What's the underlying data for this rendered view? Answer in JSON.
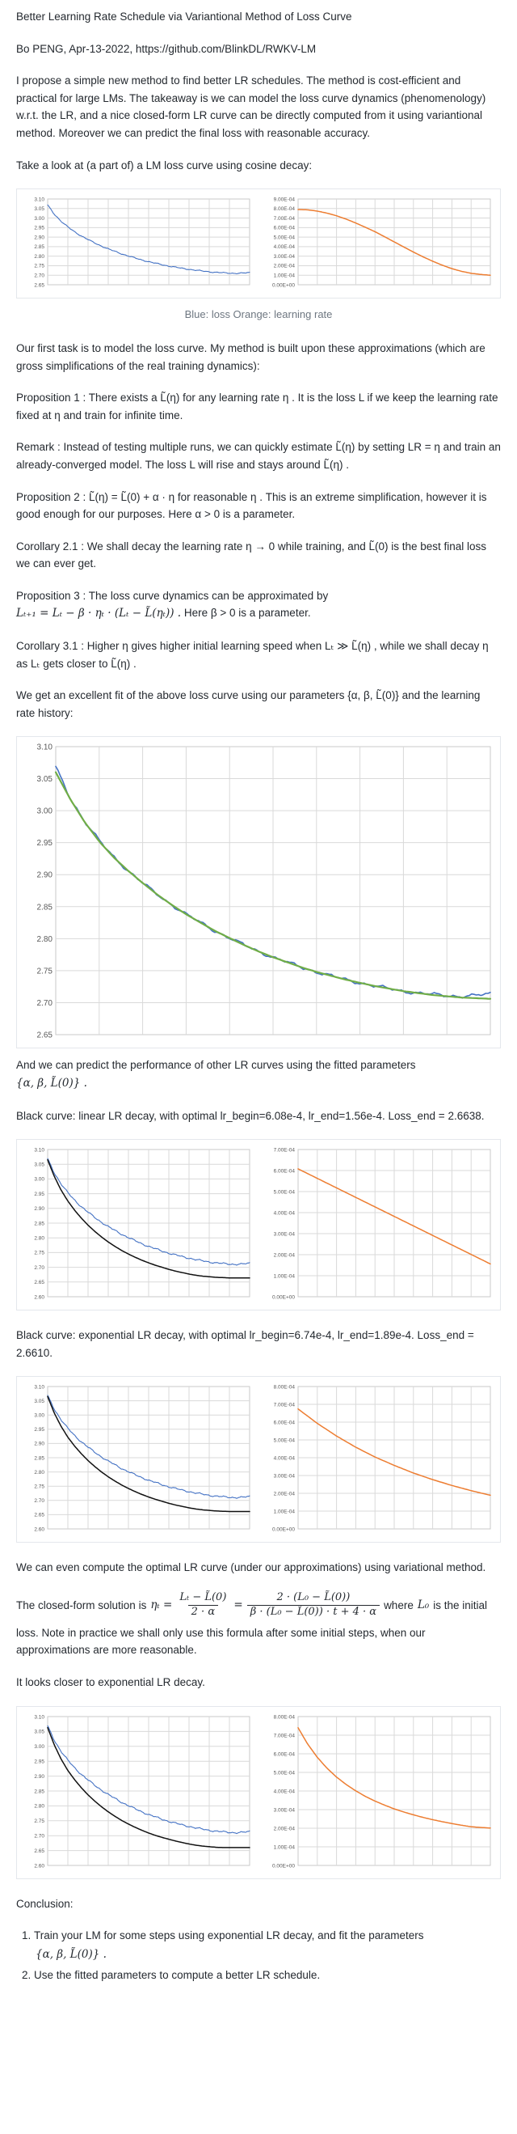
{
  "page": {
    "title": "Better Learning Rate Schedule via Variantional Method of Loss Curve",
    "byline": "Bo PENG, Apr-13-2022, https://github.com/BlinkDL/RWKV-LM",
    "intro": "I propose a simple new method to find better LR schedules. The method is cost-efficient and practical for large LMs. The takeaway is we can model the loss curve dynamics (phenomenology) w.r.t. the LR, and a nice closed-form LR curve can be directly computed from it using variantional method. Moreover we can predict the final loss with reasonable accuracy.",
    "take_a_look": "Take a look at (a part of) a LM loss curve using cosine decay:",
    "fig1_caption": "Blue: loss Orange: learning rate",
    "first_task": "Our first task is to model the loss curve. My method is built upon these approximations (which are gross simplifications of the real training dynamics):",
    "prop1": "Proposition 1 : There exists a  L̃(η)  for any learning rate  η . It is the loss  L  if we keep the learning rate fixed at  η  and train for infinite time.",
    "remark": "Remark : Instead of testing multiple runs, we can quickly estimate  L̃(η)  by setting LR =  η  and train an already-converged model. The loss  L  will rise and stays around  L̃(η) .",
    "prop2": "Proposition 2 :  L̃(η) = L̃(0) + α · η  for reasonable  η . This is an extreme simplification, however it is good enough for our purposes. Here  α > 0  is a parameter.",
    "cor21": "Corollary 2.1 : We shall decay the learning rate  η → 0  while training, and  L̃(0)  is the best final loss we can ever get.",
    "prop3_line1": "Proposition 3 : The loss curve dynamics can be approximated by",
    "prop3_math": "Lₜ₊₁ = Lₜ − β · ηₜ · (Lₜ − L̃(ηₜ)) .",
    "prop3_rest": " Here  β > 0  is a parameter.",
    "cor31": "Corollary 3.1 : Higher  η  gives higher initial learning speed when  Lₜ ≫ L̃(η) , while we shall decay  η  as  Lₜ  gets closer to  L̃(η) .",
    "excellent_fit": "We get an excellent fit of the above loss curve using our parameters  {α, β, L̃(0)}  and the learning rate history:",
    "predict_text": "And we can predict the performance of other LR curves using the fitted parameters",
    "predict_math": "{α, β, L̃(0)} .",
    "black_linear": "Black curve: linear LR decay, with optimal lr_begin=6.08e-4, lr_end=1.56e-4. Loss_end = 2.6638.",
    "black_exp": "Black curve: exponential LR decay, with optimal lr_begin=6.74e-4, lr_end=1.89e-4. Loss_end = 2.6610.",
    "variational": "We can even compute the optimal LR curve (under our approximations) using variational method.",
    "closed_form": {
      "lead": "The closed-form solution is",
      "lhs": "ηₜ =",
      "f1_num": "Lₜ − L̃(0)",
      "f1_den": "2 · α",
      "eq": "=",
      "f2_num": "2 · (L₀ − L̃(0))",
      "f2_den": "β · (L₀ − L̃(0)) · t + 4 · α",
      "tail1": "where",
      "tail2": "L₀",
      "tail3": "is the initial"
    },
    "closed_form_rest": "loss. Note in practice we shall only use this formula after some initial steps, when our approximations are more reasonable.",
    "closer": "It looks closer to exponential LR decay.",
    "conclusion_heading": "Conclusion:",
    "conclusion_items": [
      {
        "text": "Train your LM for some steps using exponential LR decay, and fit the parameters",
        "math": "{α, β, L̃(0)} ."
      },
      {
        "text": "Use the fitted parameters to compute a better LR schedule.",
        "math": ""
      }
    ]
  },
  "chart_data": [
    {
      "id": "fig1-cosine-run",
      "type": "line",
      "panels": [
        {
          "name": "loss-curve",
          "ylabels": [
            "3.10",
            "3.05",
            "3.00",
            "2.95",
            "2.90",
            "2.85",
            "2.80",
            "2.75",
            "2.70",
            "2.65"
          ],
          "ymax": 3.1,
          "ymin": 2.65,
          "labelWidth": 32,
          "labelSize": 6.5,
          "grid": true,
          "series": [
            {
              "name": "loss (blue)",
              "color": "#4472c4",
              "width": 1.1,
              "noise": 0.0035,
              "values": [
                3.068,
                3.02,
                2.983,
                2.953,
                2.928,
                2.906,
                2.887,
                2.869,
                2.853,
                2.838,
                2.825,
                2.812,
                2.801,
                2.79,
                2.78,
                2.771,
                2.763,
                2.755,
                2.748,
                2.742,
                2.736,
                2.731,
                2.726,
                2.722,
                2.718,
                2.715,
                2.713,
                2.711,
                2.71,
                2.711,
                2.714
              ]
            }
          ]
        },
        {
          "name": "learning-rate-curve",
          "ylabels": [
            "9.00E-04",
            "8.00E-04",
            "7.00E-04",
            "6.00E-04",
            "5.00E-04",
            "4.00E-04",
            "3.00E-04",
            "2.00E-04",
            "1.00E-04",
            "0.00E+00"
          ],
          "ymax": 0.0009,
          "ymin": 0,
          "labelWidth": 44,
          "labelSize": 6.5,
          "grid": true,
          "series": [
            {
              "name": "learning rate (orange, cosine decay)",
              "color": "#ed7d31",
              "width": 1.5,
              "noise": 0,
              "values": [
                0.00079,
                0.000786,
                0.000773,
                0.000752,
                0.000724,
                0.000689,
                0.000648,
                0.000603,
                0.000557,
                0.000504,
                0.00045,
                0.000396,
                0.000343,
                0.000293,
                0.000247,
                0.000205,
                0.000169,
                0.000141,
                0.00012,
                0.000108,
                0.0001
              ]
            }
          ]
        }
      ]
    },
    {
      "id": "fig2-fit",
      "type": "line",
      "panels": [
        {
          "name": "loss-fit-chart",
          "ylabels": [
            "3.10",
            "3.05",
            "3.00",
            "2.95",
            "2.90",
            "2.85",
            "2.80",
            "2.75",
            "2.70",
            "2.65"
          ],
          "ymax": 3.1,
          "ymin": 2.65,
          "labelWidth": 42,
          "labelSize": 10,
          "grid": true,
          "series": [
            {
              "name": "actual loss (blue)",
              "color": "#4472c4",
              "width": 1.6,
              "noise": 0.0035,
              "values": [
                3.068,
                3.02,
                2.983,
                2.953,
                2.928,
                2.906,
                2.887,
                2.869,
                2.853,
                2.838,
                2.825,
                2.812,
                2.801,
                2.79,
                2.78,
                2.771,
                2.763,
                2.755,
                2.748,
                2.742,
                2.736,
                2.731,
                2.726,
                2.722,
                2.718,
                2.715,
                2.713,
                2.711,
                2.71,
                2.711,
                2.714
              ],
              "comment": ""
            },
            {
              "name": "fitted loss (green)",
              "color": "#70ad47",
              "width": 2.2,
              "noise": 0,
              "values": [
                3.06,
                3.018,
                2.982,
                2.952,
                2.927,
                2.906,
                2.887,
                2.869,
                2.853,
                2.838,
                2.825,
                2.812,
                2.801,
                2.79,
                2.78,
                2.771,
                2.763,
                2.755,
                2.748,
                2.742,
                2.736,
                2.731,
                2.726,
                2.722,
                2.718,
                2.715,
                2.712,
                2.71,
                2.708,
                2.707,
                2.706
              ]
            }
          ]
        }
      ]
    },
    {
      "id": "fig3-linear-decay",
      "type": "line",
      "panels": [
        {
          "name": "loss-comparison-linear",
          "ylabels": [
            "3.10",
            "3.05",
            "3.00",
            "2.95",
            "2.90",
            "2.85",
            "2.80",
            "2.75",
            "2.70",
            "2.65",
            "2.60"
          ],
          "ymax": 3.1,
          "ymin": 2.6,
          "labelWidth": 32,
          "labelSize": 6.5,
          "grid": true,
          "series": [
            {
              "name": "actual loss (blue)",
              "color": "#4472c4",
              "width": 1.1,
              "noise": 0.0035,
              "values": [
                3.068,
                3.02,
                2.983,
                2.953,
                2.928,
                2.906,
                2.887,
                2.869,
                2.853,
                2.838,
                2.825,
                2.812,
                2.801,
                2.79,
                2.78,
                2.771,
                2.763,
                2.755,
                2.748,
                2.742,
                2.736,
                2.731,
                2.726,
                2.722,
                2.718,
                2.715,
                2.713,
                2.711,
                2.71,
                2.711,
                2.714
              ]
            },
            {
              "name": "predicted loss linear LR (black)",
              "color": "#111111",
              "width": 1.5,
              "noise": 0,
              "values": [
                3.065,
                3.008,
                2.962,
                2.925,
                2.894,
                2.867,
                2.843,
                2.822,
                2.803,
                2.786,
                2.771,
                2.757,
                2.745,
                2.734,
                2.724,
                2.715,
                2.707,
                2.7,
                2.693,
                2.687,
                2.682,
                2.677,
                2.673,
                2.67,
                2.668,
                2.666,
                2.665,
                2.664,
                2.664,
                2.664,
                2.664
              ]
            }
          ]
        },
        {
          "name": "lr-linear",
          "ylabels": [
            "7.00E-04",
            "6.00E-04",
            "5.00E-04",
            "4.00E-04",
            "3.00E-04",
            "2.00E-04",
            "1.00E-04",
            "0.00E+00"
          ],
          "ymax": 0.0007,
          "ymin": 0,
          "labelWidth": 44,
          "labelSize": 6.5,
          "grid": true,
          "series": [
            {
              "name": "linear LR decay 6.08e-4 to 1.56e-4 (orange)",
              "color": "#ed7d31",
              "width": 1.5,
              "noise": 0,
              "values": [
                0.000608,
                0.000156
              ]
            }
          ]
        }
      ]
    },
    {
      "id": "fig4-exponential-decay",
      "type": "line",
      "panels": [
        {
          "name": "loss-comparison-exp",
          "ylabels": [
            "3.10",
            "3.05",
            "3.00",
            "2.95",
            "2.90",
            "2.85",
            "2.80",
            "2.75",
            "2.70",
            "2.65",
            "2.60"
          ],
          "ymax": 3.1,
          "ymin": 2.6,
          "labelWidth": 32,
          "labelSize": 6.5,
          "grid": true,
          "series": [
            {
              "name": "actual loss (blue)",
              "color": "#4472c4",
              "width": 1.1,
              "noise": 0.0035,
              "values": [
                3.068,
                3.02,
                2.983,
                2.953,
                2.928,
                2.906,
                2.887,
                2.869,
                2.853,
                2.838,
                2.825,
                2.812,
                2.801,
                2.79,
                2.78,
                2.771,
                2.763,
                2.755,
                2.748,
                2.742,
                2.736,
                2.731,
                2.726,
                2.722,
                2.718,
                2.715,
                2.713,
                2.711,
                2.71,
                2.711,
                2.714
              ]
            },
            {
              "name": "predicted loss exponential LR (black)",
              "color": "#111111",
              "width": 1.5,
              "noise": 0,
              "values": [
                3.065,
                3.006,
                2.96,
                2.922,
                2.891,
                2.864,
                2.84,
                2.819,
                2.8,
                2.783,
                2.768,
                2.754,
                2.742,
                2.731,
                2.721,
                2.712,
                2.704,
                2.697,
                2.69,
                2.684,
                2.679,
                2.674,
                2.67,
                2.667,
                2.665,
                2.663,
                2.662,
                2.661,
                2.661,
                2.661,
                2.661
              ]
            }
          ]
        },
        {
          "name": "lr-exponential",
          "ylabels": [
            "8.00E-04",
            "7.00E-04",
            "6.00E-04",
            "5.00E-04",
            "4.00E-04",
            "3.00E-04",
            "2.00E-04",
            "1.00E-04",
            "0.00E+00"
          ],
          "ymax": 0.0008,
          "ymin": 0,
          "labelWidth": 44,
          "labelSize": 6.5,
          "grid": true,
          "series": [
            {
              "name": "exponential LR decay 6.74e-4 to 1.89e-4 (orange)",
              "color": "#ed7d31",
              "width": 1.5,
              "noise": 0,
              "values": [
                0.000674,
                0.000593,
                0.000522,
                0.000459,
                0.000404,
                0.000357,
                0.000314,
                0.000277,
                0.000244,
                0.000215,
                0.000189
              ]
            }
          ]
        }
      ]
    },
    {
      "id": "fig5-optimal-variational",
      "type": "line",
      "panels": [
        {
          "name": "loss-comparison-optimal",
          "ylabels": [
            "3.10",
            "3.05",
            "3.00",
            "2.95",
            "2.90",
            "2.85",
            "2.80",
            "2.75",
            "2.70",
            "2.65",
            "2.60"
          ],
          "ymax": 3.1,
          "ymin": 2.6,
          "labelWidth": 32,
          "labelSize": 6.5,
          "grid": true,
          "series": [
            {
              "name": "actual loss (blue)",
              "color": "#4472c4",
              "width": 1.1,
              "noise": 0.0035,
              "values": [
                3.068,
                3.02,
                2.983,
                2.953,
                2.928,
                2.906,
                2.887,
                2.869,
                2.853,
                2.838,
                2.825,
                2.812,
                2.801,
                2.79,
                2.78,
                2.771,
                2.763,
                2.755,
                2.748,
                2.742,
                2.736,
                2.731,
                2.726,
                2.722,
                2.718,
                2.715,
                2.713,
                2.711,
                2.71,
                2.711,
                2.714
              ]
            },
            {
              "name": "predicted loss optimal LR (black)",
              "color": "#111111",
              "width": 1.5,
              "noise": 0,
              "values": [
                3.063,
                3.004,
                2.957,
                2.919,
                2.888,
                2.861,
                2.837,
                2.816,
                2.797,
                2.78,
                2.765,
                2.751,
                2.739,
                2.728,
                2.718,
                2.709,
                2.701,
                2.694,
                2.688,
                2.682,
                2.677,
                2.672,
                2.668,
                2.665,
                2.663,
                2.661,
                2.66,
                2.66,
                2.66,
                2.66,
                2.66
              ]
            }
          ]
        },
        {
          "name": "lr-optimal",
          "ylabels": [
            "8.00E-04",
            "7.00E-04",
            "6.00E-04",
            "5.00E-04",
            "4.00E-04",
            "3.00E-04",
            "2.00E-04",
            "1.00E-04",
            "0.00E+00"
          ],
          "ymax": 0.0008,
          "ymin": 0,
          "labelWidth": 44,
          "labelSize": 6.5,
          "grid": true,
          "series": [
            {
              "name": "closed-form optimal LR curve (orange)",
              "color": "#ed7d31",
              "width": 1.5,
              "noise": 0,
              "values": [
                0.00074,
                0.000652,
                0.000581,
                0.000523,
                0.000475,
                0.000435,
                0.000401,
                0.000371,
                0.000346,
                0.000324,
                0.000304,
                0.000287,
                0.000272,
                0.000258,
                0.000246,
                0.000235,
                0.000225,
                0.000216,
                0.000208,
                0.000204,
                0.000201
              ]
            }
          ]
        }
      ]
    }
  ]
}
